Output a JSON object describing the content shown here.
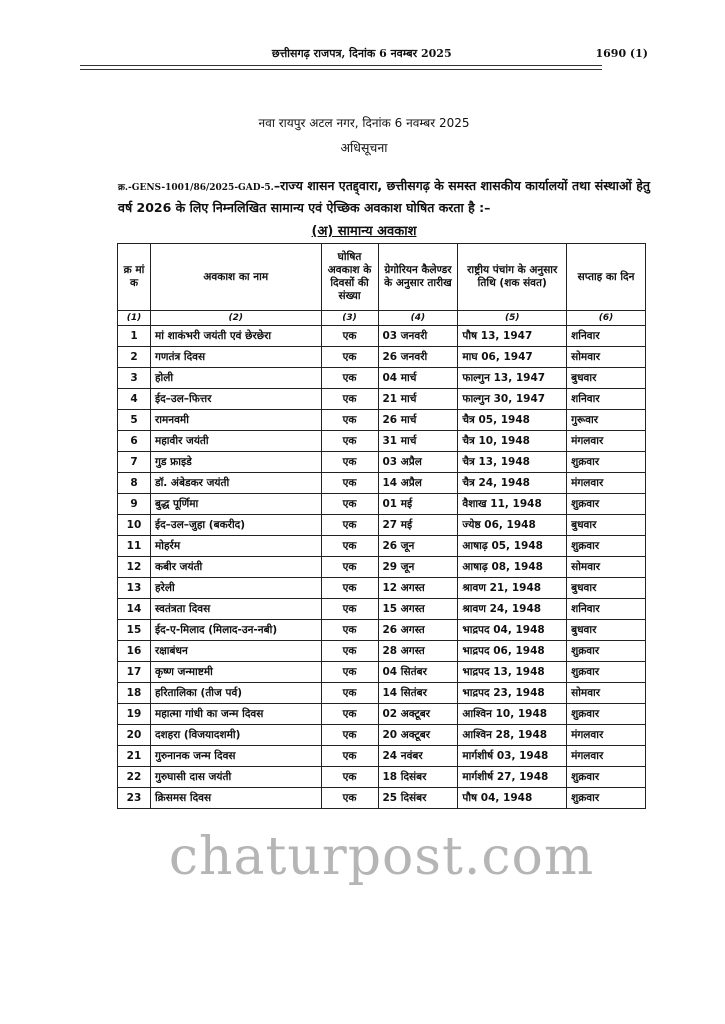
{
  "header": {
    "gazette": "छत्तीसगढ़ राजपत्र, दिनांक 6 नवम्बर 2025",
    "page": "1690 (1)"
  },
  "place_date": "नवा रायपुर अटल नगर, दिनांक 6 नवम्बर 2025",
  "notice_title": "अधिसूचना",
  "reference": "क्र.-GENS-1001/86/2025-GAD-5.",
  "paragraph": "–राज्य शासन एतद्द्वारा, छत्तीसगढ़ के समस्त शासकीय कार्यालयों तथा संस्थाओं हेतु वर्ष 2026 के लिए निम्नलिखित सामान्य एवं ऐच्छिक अवकाश घोषित करता है :–",
  "section_title": "(अ) सामान्य अवकाश",
  "watermark": "chaturpost.com",
  "table": {
    "headers": [
      "क्र मां क",
      "अवकाश का नाम",
      "घोषित अवकाश के दिवसों की संख्या",
      "ग्रेगोरियन कैलेण्डर के अनुसार तारीख",
      "राष्ट्रीय पंचांग के अनुसार तिथि (शक संवत)",
      "सप्ताह का दिन"
    ],
    "column_numbers": [
      "(1)",
      "(2)",
      "(3)",
      "(4)",
      "(5)",
      "(6)"
    ],
    "rows": [
      [
        "1",
        "मां शाकंभरी जयंती एवं छेरछेरा",
        "एक",
        "03 जनवरी",
        "पौष 13, 1947",
        "शनिवार"
      ],
      [
        "2",
        "गणतंत्र दिवस",
        "एक",
        "26 जनवरी",
        "माघ 06, 1947",
        "सोमवार"
      ],
      [
        "3",
        "होली",
        "एक",
        "04 मार्च",
        "फाल्गुन 13, 1947",
        "बुधवार"
      ],
      [
        "4",
        "ईद–उल–फित्तर",
        "एक",
        "21 मार्च",
        "फाल्गुन 30, 1947",
        "शनिवार"
      ],
      [
        "5",
        "रामनवमी",
        "एक",
        "26 मार्च",
        "चैत्र 05, 1948",
        "गुरूवार"
      ],
      [
        "6",
        "महावीर जयंती",
        "एक",
        "31 मार्च",
        "चैत्र 10, 1948",
        "मंगलवार"
      ],
      [
        "7",
        "गुड फ्राइडे",
        "एक",
        "03 अप्रैल",
        "चैत्र 13, 1948",
        "शुक्रवार"
      ],
      [
        "8",
        "डॉ. अंबेडकर जयंती",
        "एक",
        "14 अप्रैल",
        "चैत्र 24, 1948",
        "मंगलवार"
      ],
      [
        "9",
        "बुद्ध पूर्णिमा",
        "एक",
        "01 मई",
        "वैशाख 11, 1948",
        "शुक्रवार"
      ],
      [
        "10",
        "ईद–उल–जुहा (बकरीद)",
        "एक",
        "27 मई",
        "ज्येष्ठ 06, 1948",
        "बुधवार"
      ],
      [
        "11",
        "मोहर्रम",
        "एक",
        "26 जून",
        "आषाढ़ 05, 1948",
        "शुक्रवार"
      ],
      [
        "12",
        "कबीर जयंती",
        "एक",
        "29 जून",
        "आषाढ़ 08, 1948",
        "सोमवार"
      ],
      [
        "13",
        "हरेली",
        "एक",
        "12 अगस्त",
        "श्रावण 21, 1948",
        "बुधवार"
      ],
      [
        "14",
        "स्वतंत्रता दिवस",
        "एक",
        "15 अगस्त",
        "श्रावण 24, 1948",
        "शनिवार"
      ],
      [
        "15",
        "ईद-ए-मिलाद (मिलाद-उन-नबी)",
        "एक",
        "26 अगस्त",
        "भाद्रपद 04, 1948",
        "बुधवार"
      ],
      [
        "16",
        "रक्षाबंधन",
        "एक",
        "28 अगस्त",
        "भाद्रपद 06, 1948",
        "शुक्रवार"
      ],
      [
        "17",
        "कृष्ण जन्माष्टमी",
        "एक",
        "04 सितंबर",
        "भाद्रपद 13, 1948",
        "शुक्रवार"
      ],
      [
        "18",
        "हरितालिका (तीज पर्व)",
        "एक",
        "14 सितंबर",
        "भाद्रपद 23, 1948",
        "सोमवार"
      ],
      [
        "19",
        "महात्मा गांधी का जन्म दिवस",
        "एक",
        "02 अक्टूबर",
        "आश्विन 10, 1948",
        "शुक्रवार"
      ],
      [
        "20",
        "दशहरा (विजयादशमी)",
        "एक",
        "20 अक्टूबर",
        "आश्विन 28, 1948",
        "मंगलवार"
      ],
      [
        "21",
        "गुरुनानक जन्म दिवस",
        "एक",
        "24 नवंबर",
        "मार्गशीर्ष 03, 1948",
        "मंगलवार"
      ],
      [
        "22",
        "गुरुघासी दास जयंती",
        "एक",
        "18 दिसंबर",
        "मार्गशीर्ष 27, 1948",
        "शुक्रवार"
      ],
      [
        "23",
        "क्रिसमस दिवस",
        "एक",
        "25 दिसंबर",
        "पौष 04, 1948",
        "शुक्रवार"
      ]
    ]
  }
}
